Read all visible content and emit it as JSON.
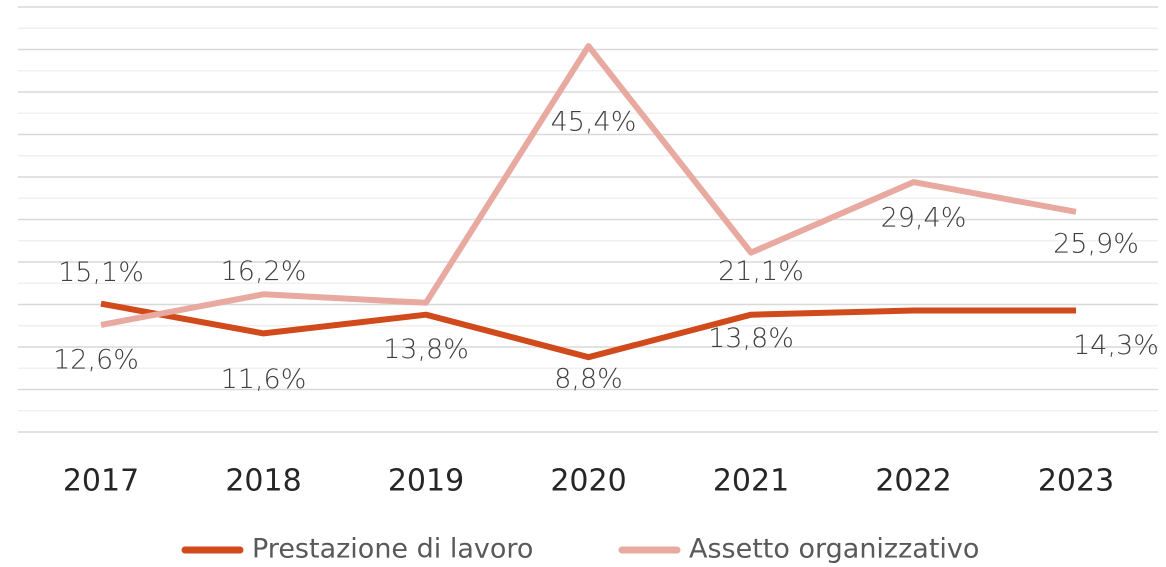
{
  "chart_data": {
    "type": "line",
    "categories": [
      "2017",
      "2018",
      "2019",
      "2020",
      "2021",
      "2022",
      "2023"
    ],
    "series": [
      {
        "name": "Prestazione di lavoro",
        "color": "#d04a1c",
        "values": [
          15.1,
          11.6,
          13.8,
          8.8,
          13.8,
          14.3,
          14.3
        ],
        "value_labels": [
          "15,1%",
          "11,6%",
          "13,8%",
          "8,8%",
          "13,8%",
          null,
          "14,3%"
        ]
      },
      {
        "name": "Assetto organizzativo",
        "color": "#e8a9a0",
        "values": [
          12.6,
          16.2,
          15.2,
          45.4,
          21.1,
          29.4,
          25.9
        ],
        "value_labels": [
          "12,6%",
          "16,2%",
          null,
          "45,4%",
          "21,1%",
          "29,4%",
          "25,9%"
        ]
      }
    ],
    "ylim": [
      0,
      50
    ],
    "yticks": [
      0,
      2.5,
      5,
      7.5,
      10,
      12.5,
      15,
      17.5,
      20,
      22.5,
      25,
      27.5,
      30,
      32.5,
      35,
      37.5,
      40,
      42.5,
      45,
      47.5,
      50
    ],
    "grid": true,
    "legend": "bottom"
  }
}
